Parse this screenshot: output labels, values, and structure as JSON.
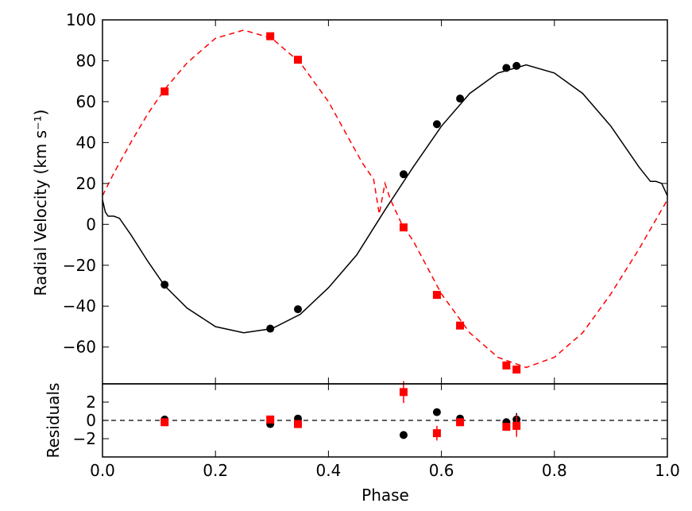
{
  "chart_data": [
    {
      "type": "line",
      "title": "",
      "xlabel": "",
      "ylabel": "Radial Velocity (km s⁻¹)",
      "xlim": [
        0.0,
        1.0
      ],
      "ylim": [
        -78,
        100
      ],
      "y_ticks": [
        100,
        80,
        60,
        40,
        20,
        0,
        -20,
        -40,
        -60
      ],
      "y_tick_labels": [
        "100",
        "80",
        "60",
        "40",
        "20",
        "0",
        "−20",
        "−40",
        "−60"
      ],
      "x_ticks": [
        0.0,
        0.2,
        0.4,
        0.6,
        0.8,
        1.0
      ],
      "grid": false,
      "series": [
        {
          "kind": "model",
          "style": "solid",
          "color": "#000000",
          "x": [
            0.0,
            0.005,
            0.01,
            0.02,
            0.03,
            0.05,
            0.08,
            0.11,
            0.15,
            0.2,
            0.25,
            0.3,
            0.35,
            0.4,
            0.45,
            0.5,
            0.55,
            0.6,
            0.65,
            0.7,
            0.75,
            0.8,
            0.85,
            0.9,
            0.95,
            0.97,
            0.98,
            0.99,
            1.0
          ],
          "y": [
            12,
            6,
            4,
            4,
            3,
            -5,
            -18,
            -30,
            -41,
            -50,
            -53,
            -51,
            -44,
            -31,
            -15,
            7,
            28,
            48,
            64,
            74,
            78,
            74,
            64,
            48,
            28,
            21,
            21,
            20,
            14
          ]
        },
        {
          "kind": "model",
          "style": "dashed",
          "color": "#ff0000",
          "x": [
            0.0,
            0.02,
            0.05,
            0.08,
            0.11,
            0.15,
            0.2,
            0.25,
            0.3,
            0.35,
            0.4,
            0.43,
            0.46,
            0.48,
            0.49,
            0.5,
            0.51,
            0.53,
            0.55,
            0.6,
            0.65,
            0.7,
            0.75,
            0.8,
            0.85,
            0.9,
            0.95,
            1.0
          ],
          "y": [
            14,
            25,
            40,
            54,
            66,
            79,
            91,
            95,
            91,
            79,
            60,
            45,
            30,
            22,
            5,
            20,
            12,
            0,
            -8,
            -34,
            -53,
            -65,
            -70,
            -65,
            -53,
            -34,
            -12,
            12
          ]
        },
        {
          "kind": "observations",
          "marker": "circle",
          "color": "#000000",
          "x": [
            0.11,
            0.297,
            0.346,
            0.533,
            0.592,
            0.633,
            0.715,
            0.733
          ],
          "y": [
            -29.5,
            -51,
            -41.5,
            24.5,
            49,
            61.5,
            76.5,
            77.5
          ]
        },
        {
          "kind": "observations",
          "marker": "square",
          "color": "#ff0000",
          "x": [
            0.11,
            0.297,
            0.346,
            0.533,
            0.592,
            0.633,
            0.715,
            0.733
          ],
          "y": [
            65,
            92,
            80.5,
            -1.5,
            -34.5,
            -49.5,
            -69,
            -71
          ]
        }
      ]
    },
    {
      "type": "scatter",
      "title": "",
      "xlabel": "Phase",
      "ylabel": "Residuals",
      "xlim": [
        0.0,
        1.0
      ],
      "ylim": [
        -4,
        4
      ],
      "y_ticks": [
        2,
        0,
        -2
      ],
      "y_tick_labels": [
        "2",
        "0",
        "−2"
      ],
      "x_ticks": [
        0.0,
        0.2,
        0.4,
        0.6,
        0.8,
        1.0
      ],
      "x_tick_labels": [
        "0.0",
        "0.2",
        "0.4",
        "0.6",
        "0.8",
        "1.0"
      ],
      "zero_line": "dashed",
      "grid": false,
      "series": [
        {
          "marker": "circle",
          "color": "#000000",
          "x": [
            0.11,
            0.297,
            0.346,
            0.533,
            0.592,
            0.633,
            0.715,
            0.733
          ],
          "y": [
            0.1,
            -0.4,
            0.2,
            -1.6,
            0.9,
            0.2,
            -0.2,
            0.1
          ],
          "err": [
            0.2,
            0.2,
            0.2,
            0.3,
            0.2,
            0.2,
            0.2,
            0.7
          ]
        },
        {
          "marker": "square",
          "color": "#ff0000",
          "x": [
            0.11,
            0.297,
            0.346,
            0.533,
            0.592,
            0.633,
            0.715,
            0.733
          ],
          "y": [
            -0.2,
            0.1,
            -0.4,
            3.1,
            -1.4,
            -0.2,
            -0.7,
            -0.6
          ],
          "err": [
            0.3,
            0.3,
            0.3,
            1.2,
            0.8,
            0.3,
            0.4,
            1.2
          ]
        }
      ]
    }
  ]
}
